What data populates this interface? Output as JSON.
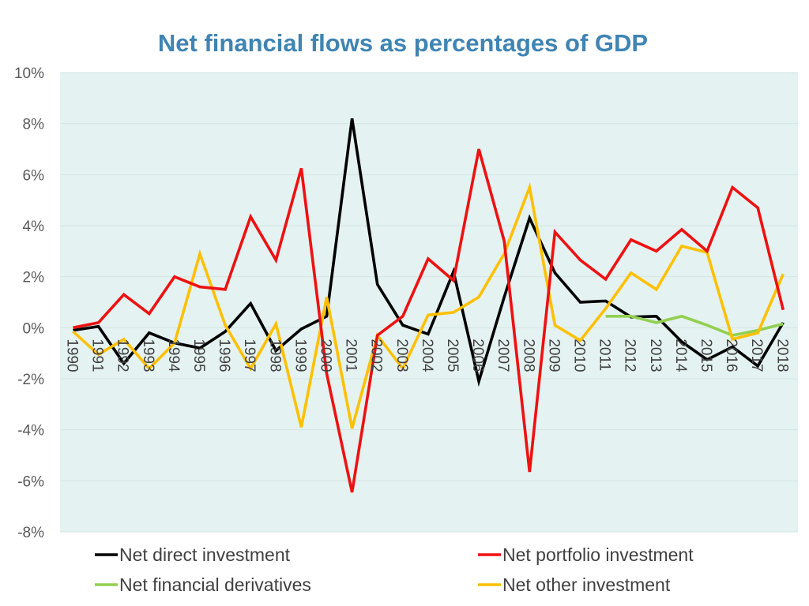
{
  "chart_data": {
    "type": "line",
    "title": "Net financial flows as percentages of GDP",
    "xlabel": "",
    "ylabel": "",
    "ylim": [
      -8,
      10
    ],
    "y_ticks": [
      10,
      8,
      6,
      4,
      2,
      0,
      -2,
      -4,
      -6,
      -8
    ],
    "y_tick_labels": [
      "10%",
      "8%",
      "6%",
      "4%",
      "2%",
      "0%",
      "-2%",
      "-4%",
      "-6%",
      "-8%"
    ],
    "categories": [
      "1990",
      "1991",
      "1992",
      "1993",
      "1994",
      "1995",
      "1996",
      "1997",
      "1998",
      "1999",
      "2000",
      "2001",
      "2002",
      "2003",
      "2004",
      "2005",
      "2006",
      "2007",
      "2008",
      "2009",
      "2010",
      "2011",
      "2012",
      "2013",
      "2014",
      "2015",
      "2016",
      "2017",
      "2018"
    ],
    "grid": true,
    "legend_position": "bottom",
    "colors": {
      "title": "#3F84B3",
      "plot_background": "#E4F2F1",
      "gridline": "#D3E6E3"
    },
    "series": [
      {
        "name": "Net direct investment",
        "color": "#000000",
        "values": [
          -0.1,
          0.05,
          -1.4,
          -0.2,
          -0.6,
          -0.8,
          -0.15,
          0.95,
          -0.9,
          -0.05,
          0.45,
          8.2,
          1.7,
          0.1,
          -0.25,
          2.2,
          -2.1,
          1.2,
          4.3,
          2.15,
          1.0,
          1.05,
          0.42,
          0.45,
          -0.55,
          -1.25,
          -0.75,
          -1.5,
          0.2
        ]
      },
      {
        "name": "Net portfolio investment",
        "color": "#EE1111",
        "values": [
          0.0,
          0.2,
          1.3,
          0.55,
          2.0,
          1.6,
          1.5,
          4.35,
          2.65,
          6.25,
          -1.8,
          -6.45,
          -0.3,
          0.45,
          2.7,
          1.85,
          7.0,
          3.4,
          -5.65,
          3.75,
          2.65,
          1.9,
          3.45,
          3.0,
          3.85,
          3.0,
          5.5,
          4.7,
          0.7
        ]
      },
      {
        "name": "Net financial derivatives",
        "color": "#92D050",
        "values": [
          null,
          null,
          null,
          null,
          null,
          null,
          null,
          null,
          null,
          null,
          null,
          null,
          null,
          null,
          null,
          null,
          null,
          null,
          null,
          null,
          null,
          0.45,
          0.45,
          0.2,
          0.45,
          0.1,
          -0.3,
          -0.1,
          0.15
        ]
      },
      {
        "name": "Net other investment",
        "color": "#FFC000",
        "values": [
          -0.15,
          -1.05,
          -0.45,
          -1.6,
          -0.6,
          2.9,
          0.1,
          -1.6,
          0.15,
          -3.9,
          1.2,
          -3.95,
          -0.3,
          -1.6,
          0.5,
          0.6,
          1.2,
          2.9,
          5.5,
          0.1,
          -0.5,
          0.75,
          2.15,
          1.5,
          3.2,
          2.95,
          -0.45,
          -0.2,
          2.1
        ]
      }
    ]
  }
}
